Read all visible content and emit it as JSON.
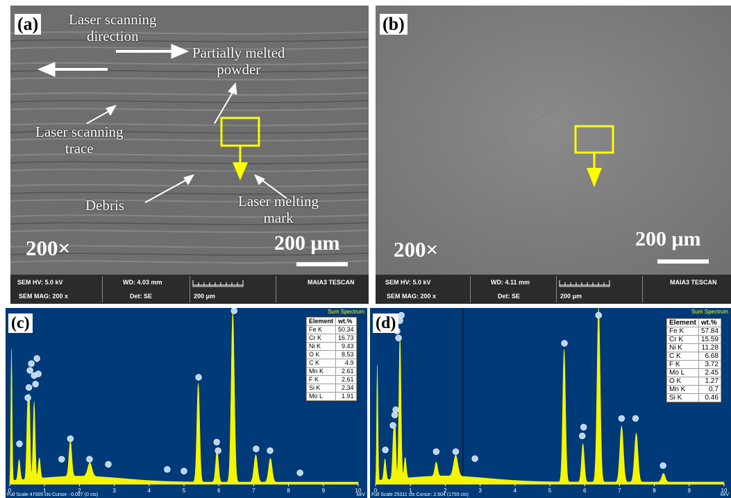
{
  "figure": {
    "panels": {
      "a": {
        "label": "(a)",
        "annotations": {
          "scan_direction": "Laser scanning\ndirection",
          "partially_melted": "Partially melted\npowder",
          "scan_trace": "Laser scanning\ntrace",
          "debris": "Debris",
          "melting_mark": "Laser melting\nmark"
        },
        "magnification": "200×",
        "scale_bar": "200 μm",
        "databar": {
          "sem_hv": "SEM HV: 5.0 kV",
          "wd": "WD: 4.03 mm",
          "brand": "MAIA3 TESCAN",
          "sem_mag": "SEM MAG: 200 x",
          "det": "Det: SE",
          "fov": "200 μm"
        }
      },
      "b": {
        "label": "(b)",
        "magnification": "200×",
        "scale_bar": "200 μm",
        "databar": {
          "sem_hv": "SEM HV: 5.0 kV",
          "wd": "WD: 4.11 mm",
          "brand": "MAIA3 TESCAN",
          "sem_mag": "SEM MAG: 200 x",
          "det": "Det: SE",
          "fov": "200 μm"
        }
      },
      "c": {
        "label": "(c)",
        "title": "Sum Spectrum",
        "footer": "Full Scale 47005 cts Cursor: -0.097  (0 cts)",
        "unit": "keV",
        "table": {
          "header": [
            "Element",
            "wt.%"
          ],
          "rows": [
            [
              "Fe K",
              "50.34"
            ],
            [
              "Cr K",
              "16.73"
            ],
            [
              "Ni K",
              "9.43"
            ],
            [
              "O K",
              "8.53"
            ],
            [
              "C K",
              "4.9"
            ],
            [
              "Mn K",
              "2.61"
            ],
            [
              "F K",
              "2.61"
            ],
            [
              "Si K",
              "2.34"
            ],
            [
              "Mo L",
              "1.91"
            ]
          ]
        }
      },
      "d": {
        "label": "(d)",
        "title": "Sum Spectrum",
        "footer": "Full Scale 25311 cts Cursor: 2.504  (1755 cts)",
        "unit": "keV",
        "table": {
          "header": [
            "Element",
            "wt.%"
          ],
          "rows": [
            [
              "Fe K",
              "57.84"
            ],
            [
              "Cr K",
              "15.59"
            ],
            [
              "Ni K",
              "11.28"
            ],
            [
              "C K",
              "6.68"
            ],
            [
              "F K",
              "3.72"
            ],
            [
              "Mo L",
              "2.45"
            ],
            [
              "O K",
              "1.27"
            ],
            [
              "Mn K",
              "0.7"
            ],
            [
              "Si K",
              "0.46"
            ]
          ]
        }
      }
    }
  },
  "chart_data": [
    {
      "panel": "c",
      "type": "line",
      "title": "Sum Spectrum",
      "xlabel": "keV",
      "xlim": [
        0,
        10
      ],
      "xticks": [
        "0",
        "1",
        "2",
        "3",
        "4",
        "5",
        "6",
        "7",
        "8",
        "9",
        "10"
      ],
      "ymax": 1.0,
      "peaks": [
        {
          "x": 0.05,
          "y": 0.77,
          "w": 0.018
        },
        {
          "x": 0.27,
          "y": 0.12,
          "w": 0.03
        },
        {
          "x": 0.52,
          "y": 0.47,
          "w": 0.03
        },
        {
          "x": 0.57,
          "y": 0.35,
          "w": 0.02
        },
        {
          "x": 0.7,
          "y": 0.45,
          "w": 0.03
        },
        {
          "x": 0.85,
          "y": 0.12,
          "w": 0.03
        },
        {
          "x": 1.74,
          "y": 0.21,
          "w": 0.04
        },
        {
          "x": 2.3,
          "y": 0.08,
          "w": 0.06
        },
        {
          "x": 5.41,
          "y": 0.58,
          "w": 0.04
        },
        {
          "x": 5.95,
          "y": 0.19,
          "w": 0.04
        },
        {
          "x": 6.4,
          "y": 1.0,
          "w": 0.045
        },
        {
          "x": 7.06,
          "y": 0.16,
          "w": 0.05
        },
        {
          "x": 7.48,
          "y": 0.14,
          "w": 0.05
        }
      ],
      "markers": [
        {
          "x": 0.28,
          "y": 0.22
        },
        {
          "x": 0.52,
          "y": 0.49
        },
        {
          "x": 0.55,
          "y": 0.55
        },
        {
          "x": 0.58,
          "y": 0.65
        },
        {
          "x": 0.62,
          "y": 0.69
        },
        {
          "x": 0.7,
          "y": 0.62
        },
        {
          "x": 0.74,
          "y": 0.57
        },
        {
          "x": 0.78,
          "y": 0.72
        },
        {
          "x": 0.82,
          "y": 0.63
        },
        {
          "x": 1.49,
          "y": 0.13
        },
        {
          "x": 1.74,
          "y": 0.25
        },
        {
          "x": 2.29,
          "y": 0.13
        },
        {
          "x": 2.83,
          "y": 0.1
        },
        {
          "x": 4.52,
          "y": 0.07
        },
        {
          "x": 5.0,
          "y": 0.06
        },
        {
          "x": 5.42,
          "y": 0.61
        },
        {
          "x": 5.94,
          "y": 0.23
        },
        {
          "x": 5.98,
          "y": 0.18
        },
        {
          "x": 6.4,
          "y": 1.05
        },
        {
          "x": 6.44,
          "y": 1.0
        },
        {
          "x": 7.07,
          "y": 0.19
        },
        {
          "x": 7.47,
          "y": 0.18
        },
        {
          "x": 8.33,
          "y": 0.05
        }
      ]
    },
    {
      "panel": "d",
      "type": "line",
      "title": "Sum Spectrum",
      "xlabel": "keV",
      "xlim": [
        0,
        10
      ],
      "xticks": [
        "0",
        "1",
        "2",
        "3",
        "4",
        "5",
        "6",
        "7",
        "8",
        "9",
        "10"
      ],
      "cursor": 2.504,
      "ymax": 1.0,
      "peaks": [
        {
          "x": 0.05,
          "y": 0.66,
          "w": 0.018
        },
        {
          "x": 0.27,
          "y": 0.12,
          "w": 0.03
        },
        {
          "x": 0.52,
          "y": 0.28,
          "w": 0.03
        },
        {
          "x": 0.57,
          "y": 0.22,
          "w": 0.02
        },
        {
          "x": 0.7,
          "y": 0.82,
          "w": 0.03
        },
        {
          "x": 0.85,
          "y": 0.12,
          "w": 0.03
        },
        {
          "x": 1.74,
          "y": 0.08,
          "w": 0.04
        },
        {
          "x": 2.3,
          "y": 0.12,
          "w": 0.06
        },
        {
          "x": 5.41,
          "y": 0.76,
          "w": 0.04
        },
        {
          "x": 5.95,
          "y": 0.22,
          "w": 0.04
        },
        {
          "x": 6.4,
          "y": 1.0,
          "w": 0.045
        },
        {
          "x": 7.06,
          "y": 0.32,
          "w": 0.05
        },
        {
          "x": 7.48,
          "y": 0.28,
          "w": 0.05
        },
        {
          "x": 8.26,
          "y": 0.05,
          "w": 0.05
        }
      ],
      "markers": [
        {
          "x": 0.28,
          "y": 0.18
        },
        {
          "x": 0.5,
          "y": 0.32
        },
        {
          "x": 0.55,
          "y": 0.38
        },
        {
          "x": 0.58,
          "y": 0.41
        },
        {
          "x": 0.62,
          "y": 0.86
        },
        {
          "x": 0.66,
          "y": 0.82
        },
        {
          "x": 0.7,
          "y": 0.92
        },
        {
          "x": 0.74,
          "y": 0.95
        },
        {
          "x": 1.74,
          "y": 0.17
        },
        {
          "x": 2.3,
          "y": 0.17
        },
        {
          "x": 2.85,
          "y": 0.13
        },
        {
          "x": 5.42,
          "y": 0.79
        },
        {
          "x": 5.93,
          "y": 0.26
        },
        {
          "x": 5.97,
          "y": 0.31
        },
        {
          "x": 6.4,
          "y": 0.95
        },
        {
          "x": 6.44,
          "y": 1.04
        },
        {
          "x": 7.06,
          "y": 0.36
        },
        {
          "x": 7.46,
          "y": 0.36
        },
        {
          "x": 8.25,
          "y": 0.09
        }
      ]
    }
  ]
}
